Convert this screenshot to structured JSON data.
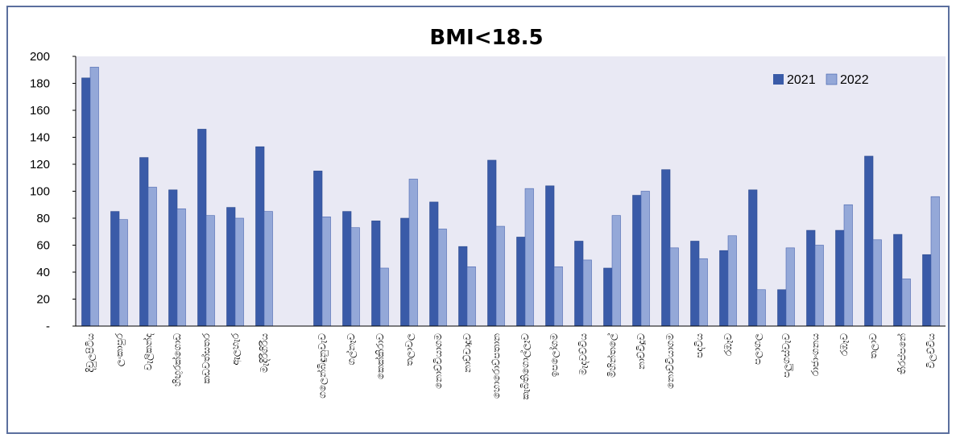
{
  "chart_data": {
    "type": "bar",
    "title": "BMI<18.5",
    "xlabel": "",
    "ylabel": "",
    "ylim": [
      0,
      200
    ],
    "y_ticks": [
      "-",
      "20",
      "40",
      "60",
      "80",
      "100",
      "120",
      "140",
      "160",
      "180",
      "200"
    ],
    "legend_position": "top-right",
    "grid": false,
    "categories": [
      "දිවුලපිටිය",
      "ලංකාපුර",
      "වැලිකන්ද",
      "හිඟුරක්ගොඩ",
      "කඩවත්සතර",
      "ඇලහැර",
      "මැදිරිගිරිය",
      "",
      "ගලෙන්බිඳුනුවැව",
      "ගල්නෑව",
      "කෙක්කිරාව",
      "තලාවල",
      "නොච්චියාගම",
      "නාච්චාදූව",
      "හොරොව්පතාන",
      "කැබිතිගොල්ලෑව",
      "ඉපලෝගම",
      "මැදවච්චිය",
      "මිහින්තලේ",
      "නාච්චිදූව",
      "නොච්චියාගම",
      "පදවිය",
      "රඹෑව",
      "පලාගල",
      "පලුගස්වැව",
      "රාජාංගනය",
      "රඹෑව",
      "තලාව",
      "තිරප්පනේ",
      "විලච්චිය"
    ],
    "series": [
      {
        "name": "2021",
        "color": "#3a5ba8",
        "values": [
          184,
          85,
          125,
          101,
          146,
          88,
          133,
          null,
          115,
          85,
          78,
          80,
          92,
          59,
          123,
          66,
          104,
          63,
          43,
          97,
          116,
          63,
          56,
          101,
          27,
          71,
          71,
          126,
          68,
          53
        ]
      },
      {
        "name": "2022",
        "color": "#94a8d8",
        "values": [
          192,
          79,
          103,
          87,
          82,
          80,
          85,
          null,
          81,
          73,
          43,
          109,
          72,
          44,
          74,
          102,
          44,
          49,
          82,
          100,
          58,
          50,
          67,
          27,
          58,
          60,
          90,
          64,
          35,
          96
        ]
      }
    ],
    "colors": {
      "plot_bg": "#e9e9f4",
      "frame": "#5b6f9e",
      "axis": "#000000"
    }
  }
}
